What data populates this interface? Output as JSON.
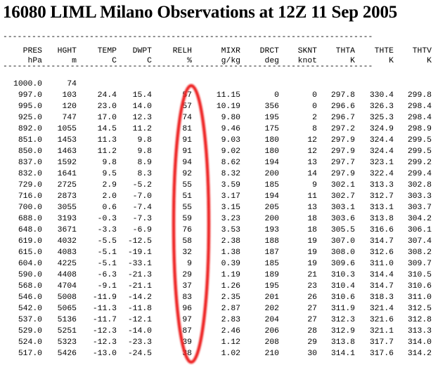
{
  "title": "16080 LIML Milano Observations at 12Z 11 Sep 2005",
  "rule": "-----------------------------------------------------------------------------",
  "columns": [
    {
      "name": "PRES",
      "unit": "hPa"
    },
    {
      "name": "HGHT",
      "unit": "m"
    },
    {
      "name": "TEMP",
      "unit": "C"
    },
    {
      "name": "DWPT",
      "unit": "C"
    },
    {
      "name": "RELH",
      "unit": "%"
    },
    {
      "name": "MIXR",
      "unit": "g/kg"
    },
    {
      "name": "DRCT",
      "unit": "deg"
    },
    {
      "name": "SKNT",
      "unit": "knot"
    },
    {
      "name": "THTA",
      "unit": "K"
    },
    {
      "name": "THTE",
      "unit": "K"
    },
    {
      "name": "THTV",
      "unit": "K"
    }
  ],
  "rows": [
    [
      "1000.0",
      "74",
      "",
      "",
      "",
      "",
      "",
      "",
      "",
      "",
      ""
    ],
    [
      "997.0",
      "103",
      "24.4",
      "15.4",
      "57",
      "11.15",
      "0",
      "0",
      "297.8",
      "330.4",
      "299.8"
    ],
    [
      "995.0",
      "120",
      "23.0",
      "14.0",
      "57",
      "10.19",
      "356",
      "0",
      "296.6",
      "326.3",
      "298.4"
    ],
    [
      "925.0",
      "747",
      "17.0",
      "12.3",
      "74",
      "9.80",
      "195",
      "2",
      "296.7",
      "325.3",
      "298.4"
    ],
    [
      "892.0",
      "1055",
      "14.5",
      "11.2",
      "81",
      "9.46",
      "175",
      "8",
      "297.2",
      "324.9",
      "298.9"
    ],
    [
      "851.0",
      "1453",
      "11.3",
      "9.8",
      "91",
      "9.03",
      "180",
      "12",
      "297.9",
      "324.4",
      "299.5"
    ],
    [
      "850.0",
      "1463",
      "11.2",
      "9.8",
      "91",
      "9.02",
      "180",
      "12",
      "297.9",
      "324.4",
      "299.5"
    ],
    [
      "837.0",
      "1592",
      "9.8",
      "8.9",
      "94",
      "8.62",
      "194",
      "13",
      "297.7",
      "323.1",
      "299.2"
    ],
    [
      "832.0",
      "1641",
      "9.5",
      "8.3",
      "92",
      "8.32",
      "200",
      "14",
      "297.9",
      "322.4",
      "299.4"
    ],
    [
      "729.0",
      "2725",
      "2.9",
      "-5.2",
      "55",
      "3.59",
      "185",
      "9",
      "302.1",
      "313.3",
      "302.8"
    ],
    [
      "716.0",
      "2873",
      "2.0",
      "-7.0",
      "51",
      "3.17",
      "194",
      "11",
      "302.7",
      "312.7",
      "303.3"
    ],
    [
      "700.0",
      "3055",
      "0.6",
      "-7.4",
      "55",
      "3.15",
      "205",
      "13",
      "303.1",
      "313.1",
      "303.7"
    ],
    [
      "688.0",
      "3193",
      "-0.3",
      "-7.3",
      "59",
      "3.23",
      "200",
      "18",
      "303.6",
      "313.8",
      "304.2"
    ],
    [
      "648.0",
      "3671",
      "-3.3",
      "-6.9",
      "76",
      "3.53",
      "193",
      "18",
      "305.5",
      "316.6",
      "306.1"
    ],
    [
      "619.0",
      "4032",
      "-5.5",
      "-12.5",
      "58",
      "2.38",
      "188",
      "19",
      "307.0",
      "314.7",
      "307.4"
    ],
    [
      "615.0",
      "4083",
      "-5.1",
      "-19.1",
      "32",
      "1.38",
      "187",
      "19",
      "308.0",
      "312.6",
      "308.2"
    ],
    [
      "604.0",
      "4225",
      "-5.1",
      "-33.1",
      "9",
      "0.39",
      "185",
      "19",
      "309.6",
      "311.0",
      "309.7"
    ],
    [
      "590.0",
      "4408",
      "-6.3",
      "-21.3",
      "29",
      "1.19",
      "189",
      "21",
      "310.3",
      "314.4",
      "310.5"
    ],
    [
      "568.0",
      "4704",
      "-9.1",
      "-21.1",
      "37",
      "1.26",
      "195",
      "23",
      "310.4",
      "314.7",
      "310.6"
    ],
    [
      "546.0",
      "5008",
      "-11.9",
      "-14.2",
      "83",
      "2.35",
      "201",
      "26",
      "310.6",
      "318.3",
      "311.0"
    ],
    [
      "542.0",
      "5065",
      "-11.3",
      "-11.8",
      "96",
      "2.87",
      "202",
      "27",
      "311.9",
      "321.4",
      "312.5"
    ],
    [
      "537.0",
      "5136",
      "-11.7",
      "-12.1",
      "97",
      "2.83",
      "204",
      "27",
      "312.3",
      "321.6",
      "312.8"
    ],
    [
      "529.0",
      "5251",
      "-12.3",
      "-14.0",
      "87",
      "2.46",
      "206",
      "28",
      "312.9",
      "321.1",
      "313.3"
    ],
    [
      "524.0",
      "5323",
      "-12.3",
      "-23.3",
      "39",
      "1.12",
      "208",
      "29",
      "313.8",
      "317.7",
      "314.0"
    ],
    [
      "517.0",
      "5426",
      "-13.0",
      "-24.5",
      "38",
      "1.02",
      "210",
      "30",
      "314.1",
      "317.6",
      "314.2"
    ]
  ],
  "highlight_color": "#ee2222"
}
